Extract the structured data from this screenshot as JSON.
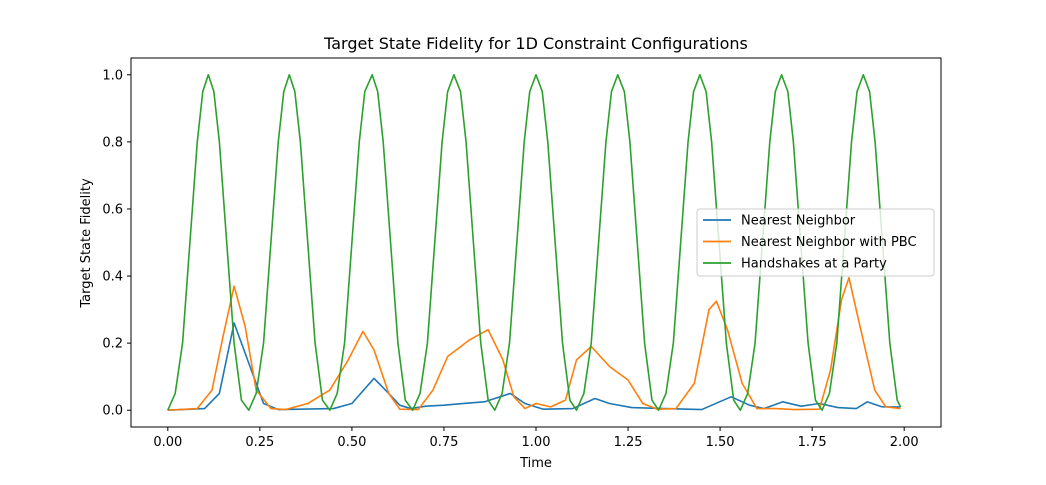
{
  "chart_data": {
    "type": "line",
    "title": "Target State Fidelity for 1D Constraint Configurations",
    "xlabel": "Time",
    "ylabel": "Target State Fidelity",
    "xlim": [
      -0.1,
      2.1
    ],
    "ylim": [
      -0.05,
      1.05
    ],
    "xticks": [
      0.0,
      0.25,
      0.5,
      0.75,
      1.0,
      1.25,
      1.5,
      1.75,
      2.0
    ],
    "xtick_labels": [
      "0.00",
      "0.25",
      "0.50",
      "0.75",
      "1.00",
      "1.25",
      "1.50",
      "1.75",
      "2.00"
    ],
    "yticks": [
      0.0,
      0.2,
      0.4,
      0.6,
      0.8,
      1.0
    ],
    "ytick_labels": [
      "0.0",
      "0.2",
      "0.4",
      "0.6",
      "0.8",
      "1.0"
    ],
    "grid": false,
    "legend_position": "center-right",
    "series": [
      {
        "name": "Nearest Neighbor",
        "color": "#1f77b4",
        "points": [
          [
            0.0,
            0.0
          ],
          [
            0.1,
            0.005
          ],
          [
            0.14,
            0.05
          ],
          [
            0.18,
            0.26
          ],
          [
            0.22,
            0.14
          ],
          [
            0.26,
            0.02
          ],
          [
            0.3,
            0.002
          ],
          [
            0.45,
            0.005
          ],
          [
            0.5,
            0.02
          ],
          [
            0.56,
            0.095
          ],
          [
            0.6,
            0.05
          ],
          [
            0.63,
            0.015
          ],
          [
            0.66,
            0.005
          ],
          [
            0.7,
            0.012
          ],
          [
            0.75,
            0.015
          ],
          [
            0.8,
            0.02
          ],
          [
            0.86,
            0.025
          ],
          [
            0.93,
            0.05
          ],
          [
            0.97,
            0.02
          ],
          [
            1.02,
            0.003
          ],
          [
            1.1,
            0.005
          ],
          [
            1.16,
            0.035
          ],
          [
            1.2,
            0.02
          ],
          [
            1.26,
            0.008
          ],
          [
            1.35,
            0.005
          ],
          [
            1.45,
            0.002
          ],
          [
            1.53,
            0.04
          ],
          [
            1.58,
            0.015
          ],
          [
            1.62,
            0.005
          ],
          [
            1.67,
            0.025
          ],
          [
            1.72,
            0.012
          ],
          [
            1.77,
            0.02
          ],
          [
            1.82,
            0.008
          ],
          [
            1.87,
            0.005
          ],
          [
            1.9,
            0.025
          ],
          [
            1.94,
            0.01
          ],
          [
            1.99,
            0.01
          ]
        ]
      },
      {
        "name": "Nearest Neighbor with PBC",
        "color": "#ff7f0e",
        "points": [
          [
            0.0,
            0.0
          ],
          [
            0.08,
            0.005
          ],
          [
            0.12,
            0.06
          ],
          [
            0.15,
            0.22
          ],
          [
            0.18,
            0.37
          ],
          [
            0.21,
            0.25
          ],
          [
            0.24,
            0.06
          ],
          [
            0.28,
            0.005
          ],
          [
            0.32,
            0.002
          ],
          [
            0.38,
            0.02
          ],
          [
            0.44,
            0.06
          ],
          [
            0.49,
            0.15
          ],
          [
            0.53,
            0.235
          ],
          [
            0.56,
            0.18
          ],
          [
            0.6,
            0.05
          ],
          [
            0.63,
            0.003
          ],
          [
            0.68,
            0.002
          ],
          [
            0.72,
            0.06
          ],
          [
            0.76,
            0.16
          ],
          [
            0.82,
            0.21
          ],
          [
            0.87,
            0.24
          ],
          [
            0.91,
            0.15
          ],
          [
            0.94,
            0.04
          ],
          [
            0.97,
            0.005
          ],
          [
            1.0,
            0.02
          ],
          [
            1.04,
            0.01
          ],
          [
            1.08,
            0.03
          ],
          [
            1.11,
            0.15
          ],
          [
            1.15,
            0.19
          ],
          [
            1.2,
            0.13
          ],
          [
            1.25,
            0.09
          ],
          [
            1.29,
            0.02
          ],
          [
            1.33,
            0.003
          ],
          [
            1.38,
            0.005
          ],
          [
            1.43,
            0.08
          ],
          [
            1.47,
            0.3
          ],
          [
            1.49,
            0.325
          ],
          [
            1.52,
            0.24
          ],
          [
            1.56,
            0.08
          ],
          [
            1.6,
            0.005
          ],
          [
            1.65,
            0.005
          ],
          [
            1.7,
            0.002
          ],
          [
            1.77,
            0.003
          ],
          [
            1.8,
            0.12
          ],
          [
            1.83,
            0.33
          ],
          [
            1.85,
            0.395
          ],
          [
            1.88,
            0.25
          ],
          [
            1.92,
            0.06
          ],
          [
            1.95,
            0.01
          ],
          [
            1.99,
            0.005
          ]
        ]
      },
      {
        "name": "Handshakes at a Party",
        "color": "#2ca02c",
        "points": [
          [
            0.0,
            0.0
          ],
          [
            0.02,
            0.05
          ],
          [
            0.04,
            0.2
          ],
          [
            0.06,
            0.5
          ],
          [
            0.08,
            0.8
          ],
          [
            0.095,
            0.95
          ],
          [
            0.11,
            1.0
          ],
          [
            0.125,
            0.95
          ],
          [
            0.14,
            0.8
          ],
          [
            0.16,
            0.5
          ],
          [
            0.18,
            0.2
          ],
          [
            0.2,
            0.03
          ],
          [
            0.22,
            0.0
          ],
          [
            0.24,
            0.05
          ],
          [
            0.26,
            0.2
          ],
          [
            0.28,
            0.5
          ],
          [
            0.3,
            0.8
          ],
          [
            0.315,
            0.95
          ],
          [
            0.33,
            1.0
          ],
          [
            0.345,
            0.95
          ],
          [
            0.36,
            0.8
          ],
          [
            0.38,
            0.5
          ],
          [
            0.4,
            0.2
          ],
          [
            0.42,
            0.03
          ],
          [
            0.44,
            0.0
          ],
          [
            0.46,
            0.05
          ],
          [
            0.48,
            0.2
          ],
          [
            0.5,
            0.5
          ],
          [
            0.52,
            0.8
          ],
          [
            0.535,
            0.95
          ],
          [
            0.555,
            1.0
          ],
          [
            0.57,
            0.95
          ],
          [
            0.585,
            0.8
          ],
          [
            0.605,
            0.5
          ],
          [
            0.625,
            0.2
          ],
          [
            0.645,
            0.03
          ],
          [
            0.665,
            0.0
          ],
          [
            0.685,
            0.05
          ],
          [
            0.705,
            0.2
          ],
          [
            0.725,
            0.5
          ],
          [
            0.745,
            0.8
          ],
          [
            0.76,
            0.95
          ],
          [
            0.777,
            1.0
          ],
          [
            0.795,
            0.95
          ],
          [
            0.81,
            0.8
          ],
          [
            0.83,
            0.5
          ],
          [
            0.85,
            0.2
          ],
          [
            0.87,
            0.03
          ],
          [
            0.888,
            0.0
          ],
          [
            0.908,
            0.05
          ],
          [
            0.928,
            0.2
          ],
          [
            0.948,
            0.5
          ],
          [
            0.968,
            0.8
          ],
          [
            0.983,
            0.95
          ],
          [
            1.0,
            1.0
          ],
          [
            1.017,
            0.95
          ],
          [
            1.032,
            0.8
          ],
          [
            1.052,
            0.5
          ],
          [
            1.072,
            0.2
          ],
          [
            1.092,
            0.03
          ],
          [
            1.11,
            0.0
          ],
          [
            1.13,
            0.05
          ],
          [
            1.15,
            0.2
          ],
          [
            1.17,
            0.5
          ],
          [
            1.19,
            0.8
          ],
          [
            1.205,
            0.95
          ],
          [
            1.222,
            1.0
          ],
          [
            1.24,
            0.95
          ],
          [
            1.255,
            0.8
          ],
          [
            1.275,
            0.5
          ],
          [
            1.295,
            0.2
          ],
          [
            1.315,
            0.03
          ],
          [
            1.333,
            0.0
          ],
          [
            1.353,
            0.05
          ],
          [
            1.373,
            0.2
          ],
          [
            1.393,
            0.5
          ],
          [
            1.413,
            0.8
          ],
          [
            1.428,
            0.95
          ],
          [
            1.445,
            1.0
          ],
          [
            1.462,
            0.95
          ],
          [
            1.477,
            0.8
          ],
          [
            1.497,
            0.5
          ],
          [
            1.517,
            0.2
          ],
          [
            1.537,
            0.03
          ],
          [
            1.555,
            0.0
          ],
          [
            1.575,
            0.05
          ],
          [
            1.595,
            0.2
          ],
          [
            1.615,
            0.5
          ],
          [
            1.635,
            0.8
          ],
          [
            1.65,
            0.95
          ],
          [
            1.667,
            1.0
          ],
          [
            1.684,
            0.95
          ],
          [
            1.699,
            0.8
          ],
          [
            1.719,
            0.5
          ],
          [
            1.739,
            0.2
          ],
          [
            1.759,
            0.03
          ],
          [
            1.777,
            0.0
          ],
          [
            1.797,
            0.05
          ],
          [
            1.817,
            0.2
          ],
          [
            1.837,
            0.5
          ],
          [
            1.857,
            0.8
          ],
          [
            1.872,
            0.95
          ],
          [
            1.889,
            1.0
          ],
          [
            1.906,
            0.95
          ],
          [
            1.921,
            0.8
          ],
          [
            1.941,
            0.5
          ],
          [
            1.961,
            0.2
          ],
          [
            1.981,
            0.03
          ],
          [
            1.99,
            0.01
          ]
        ]
      }
    ]
  }
}
